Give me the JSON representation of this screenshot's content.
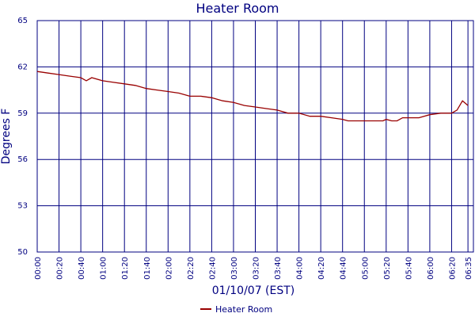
{
  "colors": {
    "grid": "#000080",
    "text": "#000080",
    "series": "#990000"
  },
  "chart_data": {
    "type": "line",
    "title": "Heater Room",
    "xlabel": "01/10/07 (EST)",
    "ylabel": "Degrees F",
    "xlim": [
      "00:00",
      "06:40"
    ],
    "ylim": [
      50,
      65
    ],
    "y_ticks": [
      "50",
      "53",
      "56",
      "59",
      "62",
      "65"
    ],
    "x_ticks": [
      "00:00",
      "00:20",
      "00:40",
      "01:00",
      "01:20",
      "01:40",
      "02:00",
      "02:20",
      "02:40",
      "03:00",
      "03:20",
      "03:40",
      "04:00",
      "04:20",
      "04:40",
      "05:00",
      "05:20",
      "05:40",
      "06:00",
      "06:20",
      "06:35"
    ],
    "grid": true,
    "legend_position": "bottom-center",
    "series": [
      {
        "name": "Heater Room",
        "x": [
          "00:00",
          "00:10",
          "00:20",
          "00:30",
          "00:40",
          "00:45",
          "00:50",
          "01:00",
          "01:10",
          "01:20",
          "01:30",
          "01:40",
          "01:50",
          "02:00",
          "02:10",
          "02:20",
          "02:30",
          "02:40",
          "02:50",
          "03:00",
          "03:10",
          "03:20",
          "03:30",
          "03:40",
          "03:50",
          "04:00",
          "04:10",
          "04:20",
          "04:30",
          "04:40",
          "04:45",
          "04:50",
          "05:00",
          "05:10",
          "05:17",
          "05:20",
          "05:25",
          "05:30",
          "05:35",
          "05:40",
          "05:50",
          "06:00",
          "06:10",
          "06:20",
          "06:25",
          "06:30",
          "06:35"
        ],
        "values": [
          61.7,
          61.6,
          61.5,
          61.4,
          61.3,
          61.1,
          61.3,
          61.1,
          61.0,
          60.9,
          60.8,
          60.6,
          60.5,
          60.4,
          60.3,
          60.1,
          60.1,
          60.0,
          59.8,
          59.7,
          59.5,
          59.4,
          59.3,
          59.2,
          59.0,
          59.0,
          58.8,
          58.8,
          58.7,
          58.6,
          58.5,
          58.5,
          58.5,
          58.5,
          58.5,
          58.6,
          58.5,
          58.5,
          58.7,
          58.7,
          58.7,
          58.9,
          59.0,
          59.0,
          59.2,
          59.8,
          59.5
        ]
      }
    ]
  }
}
